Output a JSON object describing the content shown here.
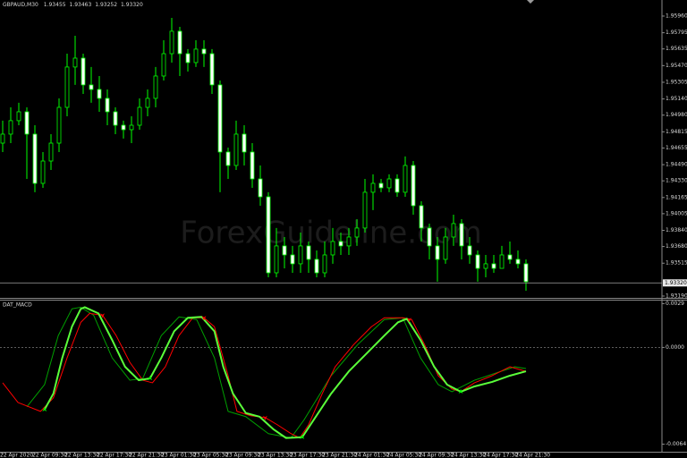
{
  "chart_data": [
    {
      "type": "candlestick",
      "title": "GBPAUD,M30",
      "quote": [
        "1.93455",
        "1.93463",
        "1.93252",
        "1.93320"
      ],
      "watermark": "ForexGuideline.com",
      "wick_color": "#00ff00",
      "up_color": "#000000",
      "down_color": "#ffffff",
      "open": [
        1.94703,
        1.94792,
        1.94925,
        1.95013,
        1.94792,
        1.94305,
        1.94526,
        1.94703,
        1.95057,
        1.95456,
        1.95544,
        1.95279,
        1.95234,
        1.95146,
        1.95013,
        1.9488,
        1.94836,
        1.9488,
        1.95057,
        1.95146,
        1.95367,
        1.95588,
        1.9581,
        1.95588,
        1.955,
        1.95633,
        1.95588,
        1.95279,
        1.94615,
        1.94482,
        1.94792,
        1.94615,
        1.94349,
        1.94172,
        1.9342,
        1.93686,
        1.93597,
        1.93509,
        1.93686,
        1.93553,
        1.9342,
        1.93597,
        1.9373,
        1.93686,
        1.93774,
        1.93863,
        1.94217,
        1.94305,
        1.94261,
        1.94349,
        1.94217,
        1.94482,
        1.94084,
        1.93863,
        1.93686,
        1.93553,
        1.93774,
        1.93907,
        1.93686,
        1.93597,
        1.93464,
        1.93509,
        1.93464,
        1.93597,
        1.93553,
        1.93509
      ],
      "high": [
        1.94925,
        1.95057,
        1.95102,
        1.95057,
        1.9488,
        1.94615,
        1.94792,
        1.95146,
        1.95588,
        1.95765,
        1.95588,
        1.95456,
        1.95367,
        1.95234,
        1.95057,
        1.94925,
        1.94969,
        1.95146,
        1.95234,
        1.95456,
        1.95721,
        1.95942,
        1.95854,
        1.95633,
        1.95721,
        1.95721,
        1.95633,
        1.95323,
        1.94659,
        1.94925,
        1.9488,
        1.94703,
        1.94482,
        1.94217,
        1.93863,
        1.93774,
        1.93686,
        1.93818,
        1.9373,
        1.93641,
        1.9373,
        1.93863,
        1.93818,
        1.93863,
        1.93951,
        1.94349,
        1.94394,
        1.94349,
        1.94394,
        1.94394,
        1.94571,
        1.94526,
        1.94128,
        1.93907,
        1.93774,
        1.93863,
        1.93995,
        1.93951,
        1.93774,
        1.93641,
        1.93597,
        1.93597,
        1.93686,
        1.9373,
        1.93641,
        1.93553
      ],
      "low": [
        1.94615,
        1.94703,
        1.9488,
        1.94349,
        1.94217,
        1.94261,
        1.94438,
        1.94615,
        1.94969,
        1.95279,
        1.9519,
        1.95102,
        1.95013,
        1.9488,
        1.94792,
        1.94748,
        1.94703,
        1.94836,
        1.94969,
        1.95057,
        1.95323,
        1.955,
        1.95367,
        1.95411,
        1.95456,
        1.95456,
        1.9519,
        1.94217,
        1.94349,
        1.94438,
        1.94482,
        1.94261,
        1.94084,
        1.93376,
        1.93376,
        1.93464,
        1.9342,
        1.9342,
        1.9342,
        1.93376,
        1.93376,
        1.93509,
        1.93597,
        1.93597,
        1.93686,
        1.93818,
        1.9404,
        1.94217,
        1.94217,
        1.94172,
        1.94172,
        1.93995,
        1.9373,
        1.93553,
        1.93332,
        1.93509,
        1.93686,
        1.93553,
        1.93509,
        1.93332,
        1.93376,
        1.9342,
        1.93464,
        1.93509,
        1.93464,
        1.93243
      ],
      "close": [
        1.94792,
        1.94925,
        1.95013,
        1.94792,
        1.94305,
        1.94526,
        1.94703,
        1.95057,
        1.95456,
        1.95544,
        1.95279,
        1.95234,
        1.95146,
        1.95013,
        1.9488,
        1.94836,
        1.9488,
        1.95057,
        1.95146,
        1.95367,
        1.95588,
        1.9581,
        1.95588,
        1.955,
        1.95633,
        1.95588,
        1.95279,
        1.94615,
        1.94482,
        1.94792,
        1.94615,
        1.94349,
        1.94172,
        1.9342,
        1.93686,
        1.93597,
        1.93509,
        1.93686,
        1.93553,
        1.9342,
        1.93597,
        1.9373,
        1.93686,
        1.93774,
        1.93863,
        1.94217,
        1.94305,
        1.94261,
        1.94349,
        1.94217,
        1.94482,
        1.94084,
        1.93863,
        1.93686,
        1.93553,
        1.93774,
        1.93907,
        1.93686,
        1.93597,
        1.93464,
        1.93509,
        1.93464,
        1.93597,
        1.93553,
        1.93509,
        1.93332
      ],
      "last_price": {
        "value": 1.9332,
        "label": "1.93320"
      },
      "ylim": [
        1.93172,
        1.96119
      ],
      "yticks": [
        {
          "value": 1.9596,
          "label": "1.95960"
        },
        1.95795,
        1.95635,
        {
          "value": 1.9547,
          "label": "1.95470"
        },
        1.95305,
        {
          "value": 1.9514,
          "label": "1.95140"
        },
        {
          "value": 1.9498,
          "label": "1.94980"
        },
        1.94815,
        1.94655,
        {
          "value": 1.9449,
          "label": "1.94490"
        },
        {
          "value": 1.9433,
          "label": "1.94330"
        },
        1.94165,
        1.94005,
        {
          "value": 1.9384,
          "label": "1.93840"
        },
        {
          "value": 1.9368,
          "label": "1.93680"
        },
        1.93515,
        {
          "value": 1.9319,
          "label": "1.93190"
        }
      ],
      "xticks": [
        {
          "value": 0,
          "label": "22 Apr 2020"
        },
        {
          "value": 4,
          "label": "22 Apr 09:30"
        },
        {
          "value": 8,
          "label": "22 Apr 13:30"
        },
        {
          "value": 12,
          "label": "22 Apr 17:30"
        },
        {
          "value": 16,
          "label": "22 Apr 21:30"
        },
        {
          "value": 20,
          "label": "23 Apr 01:30"
        },
        {
          "value": 24,
          "label": "23 Apr 05:30"
        },
        {
          "value": 28,
          "label": "23 Apr 09:30"
        },
        {
          "value": 32,
          "label": "23 Apr 13:30"
        },
        {
          "value": 36,
          "label": "23 Apr 17:30"
        },
        {
          "value": 40,
          "label": "23 Apr 21:30"
        },
        {
          "value": 44,
          "label": "24 Apr 01:30"
        },
        {
          "value": 48,
          "label": "24 Apr 05:30"
        },
        {
          "value": 52,
          "label": "24 Apr 09:30"
        },
        {
          "value": 56,
          "label": "24 Apr 13:30"
        },
        {
          "value": 60,
          "label": "24 Apr 17:30"
        },
        {
          "value": 64,
          "label": "24 Apr 21:30"
        }
      ]
    },
    {
      "type": "line",
      "title": "DAT_MACD",
      "ylim": [
        -0.0069,
        0.0031
      ],
      "yticks": [
        0.0029,
        {
          "value": 0,
          "label": "0.0000"
        },
        -0.0064
      ],
      "levels": [
        0
      ],
      "series": [
        {
          "color": "#00a000",
          "width": 1,
          "x": [
            3,
            5.2,
            6.9,
            8.6,
            9.7,
            11.3,
            13.6,
            15.8,
            17.4,
            19.7,
            21.9,
            24.1,
            26.3,
            28,
            30.2,
            33,
            35.8,
            37.4,
            40.8,
            44.1,
            47.4,
            49.7,
            51.9,
            54.1,
            55.8,
            58.6,
            61.9,
            63.6,
            65
          ],
          "values": [
            -0.00393,
            -0.00246,
            0.00078,
            0.00255,
            0.00266,
            0.00213,
            -0.00069,
            -0.00217,
            -0.00205,
            0.00078,
            0.00202,
            0.00184,
            -0.00069,
            -0.00423,
            -0.00458,
            -0.0057,
            -0.00599,
            -0.00482,
            -0.00187,
            0.00019,
            0.00184,
            0.00196,
            -0.00069,
            -0.00246,
            -0.00293,
            -0.00217,
            -0.00158,
            -0.00128,
            -0.0014
          ]
        },
        {
          "color": "#ff0000",
          "width": 1,
          "x": [
            0,
            1.9,
            4.7,
            6.3,
            8,
            9.7,
            10.8,
            12.4,
            14.1,
            15.8,
            17.4,
            18.6,
            20.2,
            21.9,
            23.6,
            25,
            26.3,
            28,
            29.1,
            30.8,
            32.6,
            34.1,
            35.8,
            36.9,
            38,
            39.7,
            41.3,
            43.6,
            45.8,
            47.4,
            49.7,
            50.8,
            52.4,
            54.1,
            55.8,
            56.9,
            58.6,
            60.8,
            63,
            65
          ],
          "values": [
            -0.00234,
            -0.00364,
            -0.00423,
            -0.00334,
            -0.00069,
            0.00166,
            0.00225,
            0.00213,
            0.00078,
            -0.00099,
            -0.00217,
            -0.00234,
            -0.00128,
            0.00078,
            0.00196,
            0.00196,
            0.00137,
            -0.00187,
            -0.00423,
            -0.00452,
            -0.00464,
            -0.00511,
            -0.0057,
            -0.00599,
            -0.00511,
            -0.00305,
            -0.00128,
            0.00019,
            0.00137,
            0.00196,
            0.00196,
            0.00184,
            0.00019,
            -0.00187,
            -0.00275,
            -0.00293,
            -0.00234,
            -0.00187,
            -0.00128,
            -0.00158
          ]
        },
        {
          "color": "#5aff3a",
          "width": 2,
          "x": [
            5.2,
            6.3,
            7.4,
            8.6,
            9.7,
            10.2,
            11.9,
            13.6,
            15.2,
            16.9,
            18.3,
            19.7,
            21.3,
            23,
            24.7,
            26.3,
            27.4,
            28.6,
            30.2,
            31.9,
            33.6,
            35.2,
            37.2,
            38.6,
            40.8,
            43,
            45.2,
            47.4,
            49.1,
            50.2,
            51.9,
            53.6,
            55.2,
            56.9,
            58.6,
            60.8,
            63,
            65
          ],
          "values": [
            -0.00411,
            -0.00305,
            -0.00069,
            0.00137,
            0.00255,
            0.00266,
            0.00225,
            0.00049,
            -0.00128,
            -0.00217,
            -0.00205,
            -0.00069,
            0.00107,
            0.00196,
            0.00202,
            0.00107,
            -0.00128,
            -0.00305,
            -0.00434,
            -0.00458,
            -0.0054,
            -0.00599,
            -0.00594,
            -0.00482,
            -0.00305,
            -0.00158,
            -0.0004,
            0.00078,
            0.00166,
            0.0019,
            0.00049,
            -0.00128,
            -0.00246,
            -0.00293,
            -0.00258,
            -0.00228,
            -0.00187,
            -0.00158
          ]
        }
      ],
      "markers": [
        {
          "x": 5.2,
          "value": -0.00411,
          "color": "#00ff00",
          "direction": "up"
        },
        {
          "x": 12.4,
          "value": 0.00213,
          "color": "#ff0000",
          "direction": "down"
        },
        {
          "x": 18.3,
          "value": -0.00205,
          "color": "#00ff00",
          "direction": "up"
        },
        {
          "x": 25,
          "value": 0.00196,
          "color": "#ff0000",
          "direction": "down"
        },
        {
          "x": 32.6,
          "value": -0.00464,
          "color": "#ff0000",
          "direction": "down"
        },
        {
          "x": 37.2,
          "value": -0.00594,
          "color": "#00ff00",
          "direction": "up"
        },
        {
          "x": 50.5,
          "value": 0.00184,
          "color": "#ff0000",
          "direction": "down"
        },
        {
          "x": 56.9,
          "value": -0.00293,
          "color": "#00ff00",
          "direction": "up"
        }
      ]
    }
  ]
}
